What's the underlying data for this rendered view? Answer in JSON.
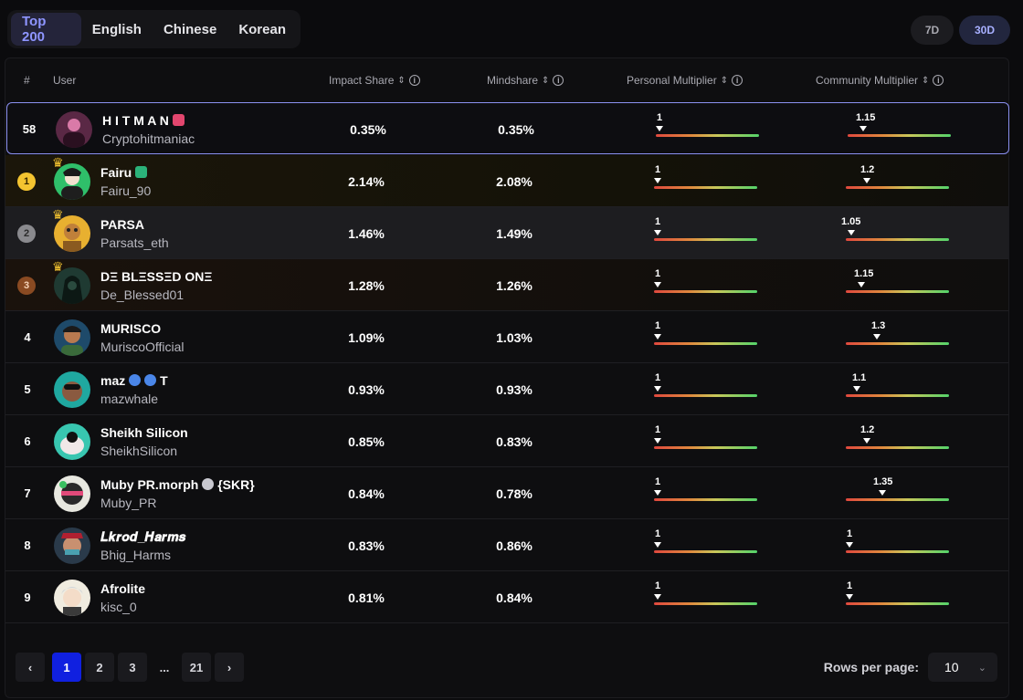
{
  "tabs": [
    {
      "label": "Top 200",
      "active": true
    },
    {
      "label": "English",
      "active": false
    },
    {
      "label": "Chinese",
      "active": false
    },
    {
      "label": "Korean",
      "active": false
    }
  ],
  "periods": [
    {
      "label": "7D",
      "active": false
    },
    {
      "label": "30D",
      "active": true
    }
  ],
  "columns": {
    "rank": "#",
    "user": "User",
    "impact": "Impact Share",
    "mindshare": "Mindshare",
    "personal": "Personal Multiplier",
    "community": "Community Multiplier"
  },
  "rows": [
    {
      "rank": "58",
      "name": "H I T M A N",
      "handle": "Cryptohitmaniac",
      "impact": "0.35%",
      "mind": "0.35%",
      "personal": "1",
      "community": "1.15"
    },
    {
      "rank": "1",
      "name": "Fairu",
      "handle": "Fairu_90",
      "impact": "2.14%",
      "mind": "2.08%",
      "personal": "1",
      "community": "1.2"
    },
    {
      "rank": "2",
      "name": "PARSA",
      "handle": "Parsats_eth",
      "impact": "1.46%",
      "mind": "1.49%",
      "personal": "1",
      "community": "1.05"
    },
    {
      "rank": "3",
      "name": "DΞ BLΞSSΞD ONΞ",
      "handle": "De_Blessed01",
      "impact": "1.28%",
      "mind": "1.26%",
      "personal": "1",
      "community": "1.15"
    },
    {
      "rank": "4",
      "name": "MURISCO",
      "handle": "MuriscoOfficial",
      "impact": "1.09%",
      "mind": "1.03%",
      "personal": "1",
      "community": "1.3"
    },
    {
      "rank": "5",
      "name": "maz",
      "name_suffix": "T",
      "handle": "mazwhale",
      "impact": "0.93%",
      "mind": "0.93%",
      "personal": "1",
      "community": "1.1"
    },
    {
      "rank": "6",
      "name": "Sheikh Silicon",
      "handle": "SheikhSilicon",
      "impact": "0.85%",
      "mind": "0.83%",
      "personal": "1",
      "community": "1.2"
    },
    {
      "rank": "7",
      "name": "Muby PR.morph",
      "name_suffix": "{SKR}",
      "handle": "Muby_PR",
      "impact": "0.84%",
      "mind": "0.78%",
      "personal": "1",
      "community": "1.35"
    },
    {
      "rank": "8",
      "name": "𝑳𝒌𝒓𝒐𝒅_𝑯𝒂𝒓𝒎𝒔",
      "handle": "Bhig_Harms",
      "impact": "0.83%",
      "mind": "0.86%",
      "personal": "1",
      "community": "1"
    },
    {
      "rank": "9",
      "name": "Afrolite",
      "handle": "kisc_0",
      "impact": "0.81%",
      "mind": "0.84%",
      "personal": "1",
      "community": "1"
    }
  ],
  "pagination": {
    "prev": "‹",
    "pages": [
      "1",
      "2",
      "3"
    ],
    "ellipsis": "...",
    "last": "21",
    "next": "›",
    "rows_label": "Rows per page:",
    "rows_value": "10"
  },
  "colors": {
    "accent": "#1020e0",
    "highlight_border": "#8b90f0",
    "gold": "#f4c430"
  }
}
